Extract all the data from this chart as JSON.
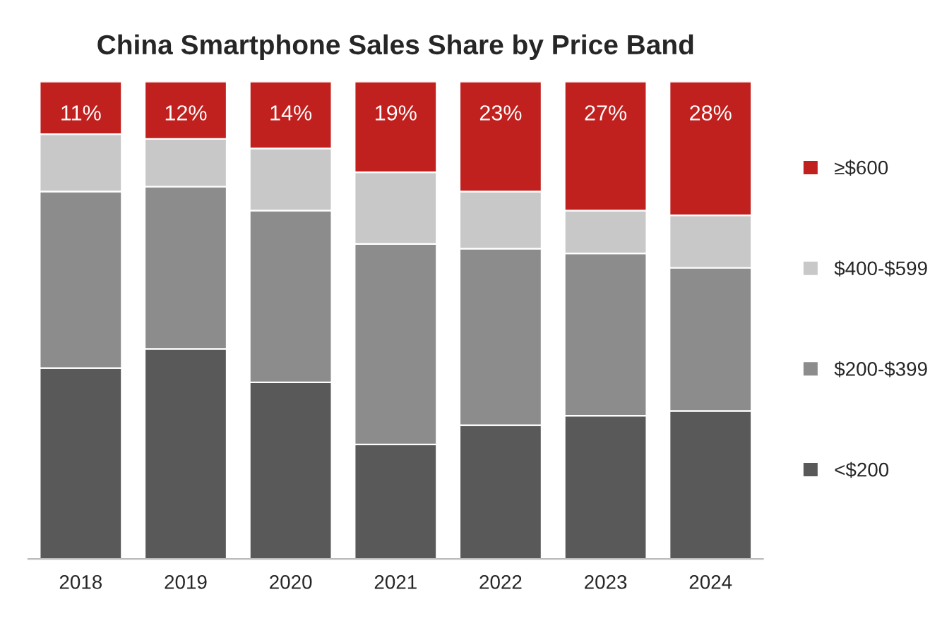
{
  "chart_data": {
    "type": "bar",
    "title": "China Smartphone Sales Share by Price Band",
    "stacked": true,
    "legend": "right",
    "grid": false,
    "tick_labels": "x",
    "categories": [
      "2018",
      "2019",
      "2020",
      "2021",
      "2022",
      "2023",
      "2024"
    ],
    "series": [
      {
        "name": "<$200",
        "color": "#595959",
        "values": [
          40,
          44,
          37,
          24,
          28,
          30,
          31
        ]
      },
      {
        "name": "$200-$399",
        "color": "#8c8c8c",
        "values": [
          37,
          34,
          36,
          42,
          37,
          34,
          30
        ]
      },
      {
        "name": "$400-$599",
        "color": "#c8c8c8",
        "values": [
          12,
          10,
          13,
          15,
          12,
          9,
          11
        ]
      },
      {
        "name": "≥$600",
        "color": "#c0201e",
        "values": [
          11,
          12,
          14,
          19,
          23,
          27,
          28
        ],
        "value_labels": [
          "11%",
          "12%",
          "14%",
          "19%",
          "23%",
          "27%",
          "28%"
        ]
      }
    ]
  }
}
